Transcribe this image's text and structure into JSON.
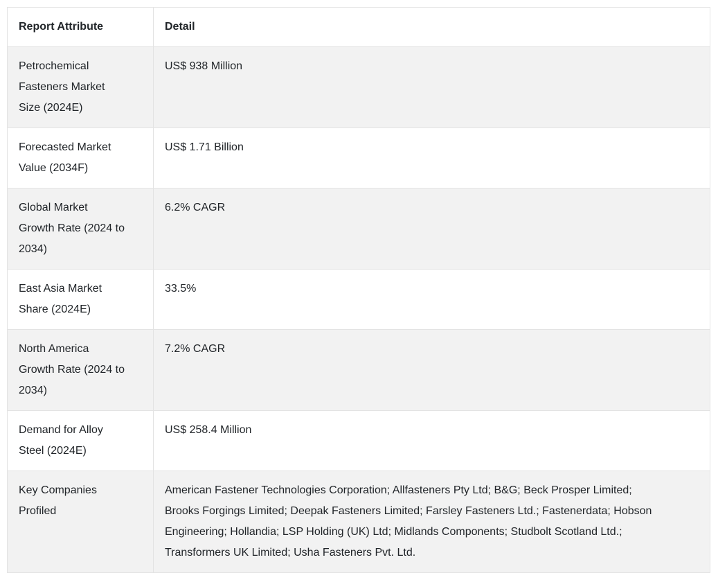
{
  "table": {
    "headers": [
      "Report Attribute",
      "Detail"
    ],
    "rows": [
      {
        "attribute": "Petrochemical Fasteners Market Size (2024E)",
        "detail": "US$ 938 Million"
      },
      {
        "attribute": "Forecasted Market Value (2034F)",
        "detail": "US$ 1.71 Billion"
      },
      {
        "attribute": "Global Market Growth Rate (2024 to 2034)",
        "detail": "6.2% CAGR"
      },
      {
        "attribute": "East Asia Market Share (2024E)",
        "detail": "33.5%"
      },
      {
        "attribute": "North America Growth Rate (2024 to 2034)",
        "detail": "7.2% CAGR"
      },
      {
        "attribute": "Demand for Alloy Steel (2024E)",
        "detail": "US$ 258.4 Million"
      },
      {
        "attribute": "Key Companies Profiled",
        "detail": "American Fastener Technologies Corporation; Allfasteners Pty Ltd; B&G; Beck Prosper Limited; Brooks Forgings Limited; Deepak Fasteners Limited; Farsley Fasteners Ltd.; Fastenerdata; Hobson Engineering; Hollandia; LSP Holding (UK) Ltd; Midlands Components; Studbolt Scotland Ltd.; Transformers UK Limited; Usha Fasteners Pvt. Ltd."
      }
    ]
  },
  "colors": {
    "background": "#ffffff",
    "row_alt_bg": "#f2f2f2",
    "border": "#e3e3e3",
    "text": "#212529"
  }
}
